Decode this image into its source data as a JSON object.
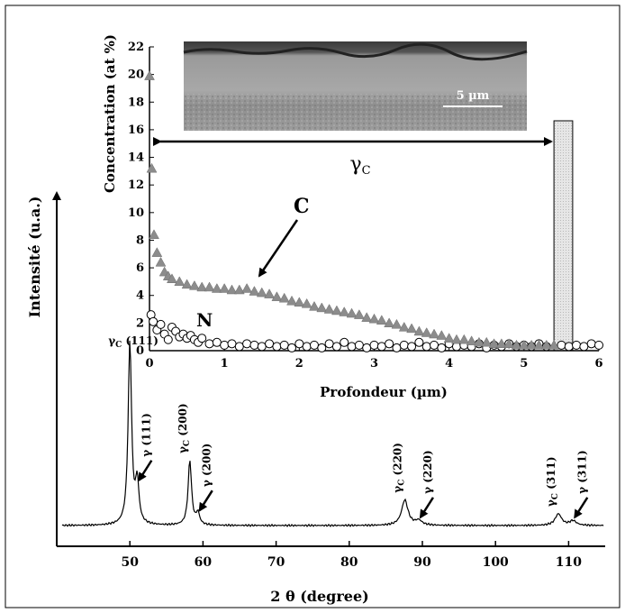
{
  "chart_data": [
    {
      "type": "line",
      "title": "",
      "xlabel": "2 θ (degree)",
      "ylabel": "Intensité (u.a.)",
      "xlim": [
        40,
        115
      ],
      "x_ticks": [
        50,
        60,
        70,
        80,
        90,
        100,
        110
      ],
      "y_ticks": [],
      "grid": false,
      "peaks": [
        {
          "x": 50.0,
          "height": 0.79,
          "label_main": "γ",
          "label_sub": "C",
          "label_hkl": "(111)"
        },
        {
          "x": 51.0,
          "height": 0.18,
          "label_main": "γ",
          "label_sub": "",
          "label_hkl": "(111)"
        },
        {
          "x": 58.2,
          "height": 0.28,
          "label_main": "γ",
          "label_sub": "C",
          "label_hkl": "(200)"
        },
        {
          "x": 59.3,
          "height": 0.05,
          "label_main": "γ",
          "label_sub": "",
          "label_hkl": "(200)"
        },
        {
          "x": 87.6,
          "height": 0.11,
          "label_main": "γ",
          "label_sub": "C",
          "label_hkl": "(220)"
        },
        {
          "x": 89.5,
          "height": 0.02,
          "label_main": "γ",
          "label_sub": "",
          "label_hkl": "(220)"
        },
        {
          "x": 108.6,
          "height": 0.05,
          "label_main": "γ",
          "label_sub": "C",
          "label_hkl": "(311)"
        },
        {
          "x": 110.6,
          "height": 0.02,
          "label_main": "γ",
          "label_sub": "",
          "label_hkl": "(311)"
        }
      ]
    },
    {
      "type": "scatter",
      "title": "",
      "xlabel": "Profondeur (µm)",
      "ylabel": "Concentration (at %)",
      "xlim": [
        0,
        6
      ],
      "ylim": [
        0,
        22
      ],
      "x_ticks": [
        0,
        1,
        2,
        3,
        4,
        5,
        6
      ],
      "y_ticks": [
        0,
        2,
        4,
        6,
        8,
        10,
        12,
        14,
        16,
        18,
        20,
        22
      ],
      "grid": false,
      "series": [
        {
          "name": "C",
          "marker": "triangle",
          "color": "#8c8c8c",
          "points": [
            [
              0.0,
              19.9
            ],
            [
              0.03,
              13.2
            ],
            [
              0.06,
              8.4
            ],
            [
              0.1,
              7.1
            ],
            [
              0.15,
              6.4
            ],
            [
              0.2,
              5.7
            ],
            [
              0.25,
              5.4
            ],
            [
              0.3,
              5.2
            ],
            [
              0.4,
              5.0
            ],
            [
              0.5,
              4.8
            ],
            [
              0.6,
              4.7
            ],
            [
              0.7,
              4.6
            ],
            [
              0.8,
              4.6
            ],
            [
              0.9,
              4.5
            ],
            [
              1.0,
              4.5
            ],
            [
              1.1,
              4.4
            ],
            [
              1.2,
              4.4
            ],
            [
              1.3,
              4.5
            ],
            [
              1.4,
              4.3
            ],
            [
              1.5,
              4.2
            ],
            [
              1.6,
              4.1
            ],
            [
              1.7,
              3.9
            ],
            [
              1.8,
              3.8
            ],
            [
              1.9,
              3.6
            ],
            [
              2.0,
              3.5
            ],
            [
              2.1,
              3.4
            ],
            [
              2.2,
              3.2
            ],
            [
              2.3,
              3.1
            ],
            [
              2.4,
              3.0
            ],
            [
              2.5,
              2.9
            ],
            [
              2.6,
              2.8
            ],
            [
              2.7,
              2.7
            ],
            [
              2.8,
              2.6
            ],
            [
              2.9,
              2.4
            ],
            [
              3.0,
              2.3
            ],
            [
              3.1,
              2.2
            ],
            [
              3.2,
              2.0
            ],
            [
              3.3,
              1.9
            ],
            [
              3.4,
              1.7
            ],
            [
              3.5,
              1.6
            ],
            [
              3.6,
              1.4
            ],
            [
              3.7,
              1.3
            ],
            [
              3.8,
              1.2
            ],
            [
              3.9,
              1.1
            ],
            [
              4.0,
              0.9
            ],
            [
              4.1,
              0.8
            ],
            [
              4.2,
              0.8
            ],
            [
              4.3,
              0.7
            ],
            [
              4.4,
              0.6
            ],
            [
              4.5,
              0.6
            ],
            [
              4.6,
              0.5
            ],
            [
              4.7,
              0.5
            ],
            [
              4.8,
              0.5
            ],
            [
              4.9,
              0.4
            ],
            [
              5.0,
              0.4
            ],
            [
              5.1,
              0.4
            ],
            [
              5.2,
              0.4
            ],
            [
              5.3,
              0.4
            ],
            [
              5.4,
              0.4
            ]
          ]
        },
        {
          "name": "N",
          "marker": "circle",
          "color": "#ffffff",
          "points": [
            [
              0.02,
              2.6
            ],
            [
              0.05,
              2.1
            ],
            [
              0.1,
              1.5
            ],
            [
              0.15,
              1.9
            ],
            [
              0.2,
              1.2
            ],
            [
              0.25,
              0.8
            ],
            [
              0.3,
              1.7
            ],
            [
              0.35,
              1.4
            ],
            [
              0.4,
              1.0
            ],
            [
              0.45,
              1.2
            ],
            [
              0.5,
              0.9
            ],
            [
              0.55,
              1.1
            ],
            [
              0.6,
              0.8
            ],
            [
              0.65,
              0.6
            ],
            [
              0.7,
              0.9
            ],
            [
              0.8,
              0.5
            ],
            [
              0.9,
              0.6
            ],
            [
              1.0,
              0.4
            ],
            [
              1.1,
              0.5
            ],
            [
              1.2,
              0.3
            ],
            [
              1.3,
              0.5
            ],
            [
              1.4,
              0.4
            ],
            [
              1.5,
              0.3
            ],
            [
              1.6,
              0.5
            ],
            [
              1.7,
              0.3
            ],
            [
              1.8,
              0.4
            ],
            [
              1.9,
              0.2
            ],
            [
              2.0,
              0.5
            ],
            [
              2.1,
              0.3
            ],
            [
              2.2,
              0.4
            ],
            [
              2.3,
              0.2
            ],
            [
              2.4,
              0.5
            ],
            [
              2.5,
              0.3
            ],
            [
              2.6,
              0.6
            ],
            [
              2.7,
              0.3
            ],
            [
              2.8,
              0.4
            ],
            [
              2.9,
              0.2
            ],
            [
              3.0,
              0.4
            ],
            [
              3.1,
              0.3
            ],
            [
              3.2,
              0.5
            ],
            [
              3.3,
              0.2
            ],
            [
              3.4,
              0.4
            ],
            [
              3.5,
              0.3
            ],
            [
              3.6,
              0.6
            ],
            [
              3.7,
              0.3
            ],
            [
              3.8,
              0.4
            ],
            [
              3.9,
              0.2
            ],
            [
              4.0,
              0.5
            ],
            [
              4.1,
              0.3
            ],
            [
              4.2,
              0.4
            ],
            [
              4.3,
              0.3
            ],
            [
              4.4,
              0.5
            ],
            [
              4.5,
              0.2
            ],
            [
              4.6,
              0.4
            ],
            [
              4.7,
              0.3
            ],
            [
              4.8,
              0.5
            ],
            [
              4.9,
              0.3
            ],
            [
              5.0,
              0.4
            ],
            [
              5.1,
              0.3
            ],
            [
              5.2,
              0.5
            ],
            [
              5.3,
              0.3
            ],
            [
              5.5,
              0.4
            ],
            [
              5.6,
              0.3
            ],
            [
              5.7,
              0.4
            ],
            [
              5.8,
              0.3
            ],
            [
              5.9,
              0.5
            ],
            [
              6.0,
              0.4
            ]
          ]
        }
      ],
      "annotations": {
        "phase_main": "γ",
        "phase_sub": "C",
        "series_c_label": "C",
        "series_n_label": "N",
        "scale_bar": "5 µm",
        "shaded_band_x": [
          5.4,
          5.65
        ]
      }
    }
  ]
}
